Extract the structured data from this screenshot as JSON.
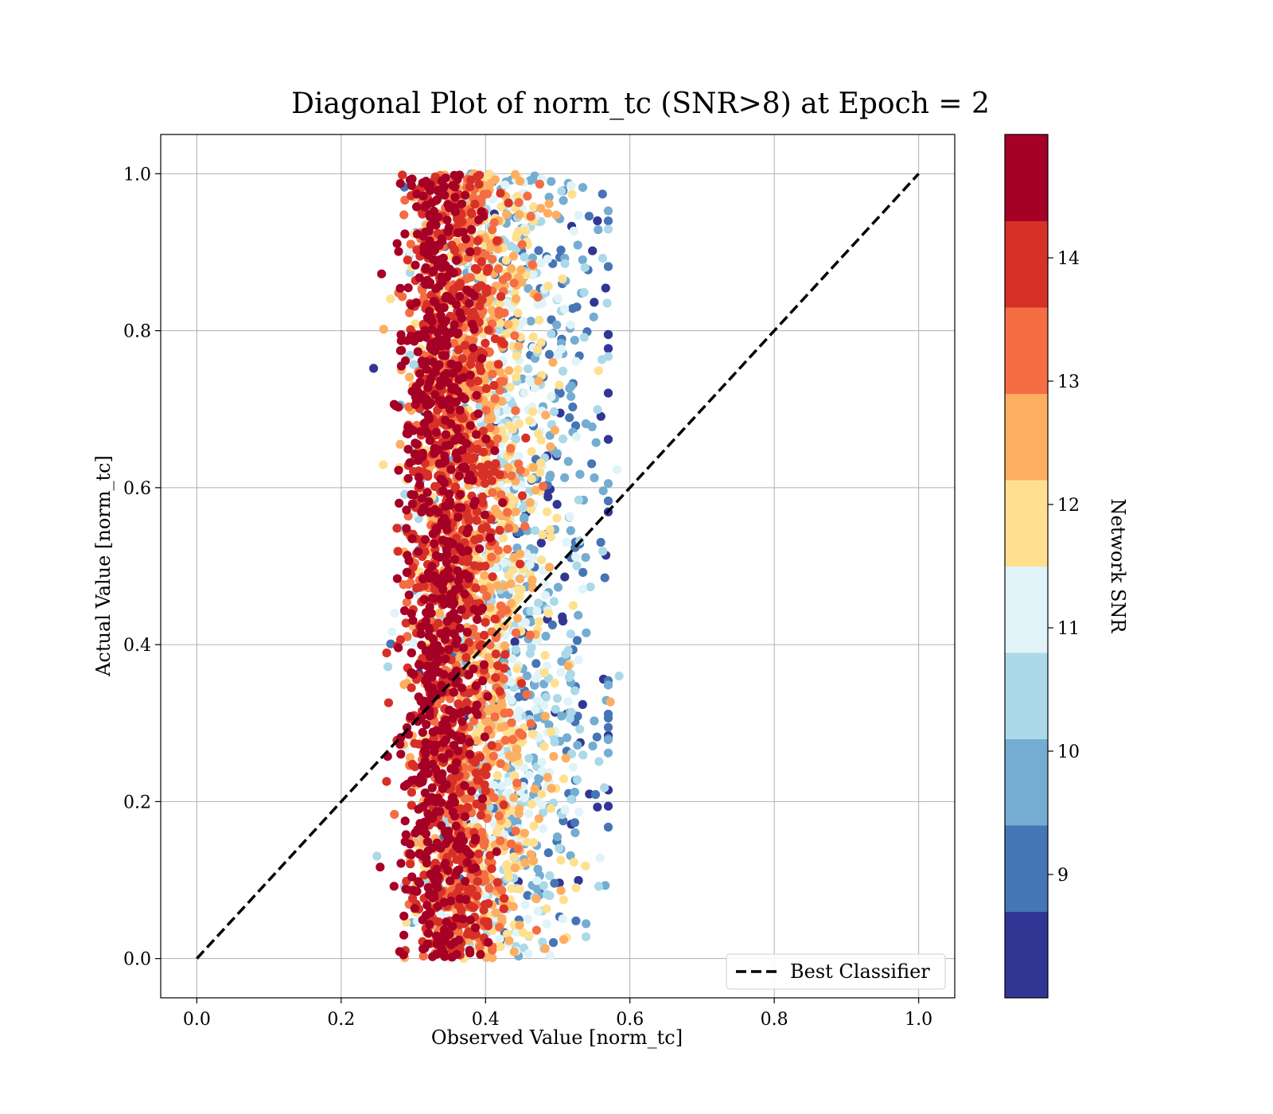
{
  "chart_data": {
    "type": "scatter",
    "title": "Diagonal Plot of norm_tc (SNR>8) at Epoch = 2",
    "xlabel": "Observed Value [norm_tc]",
    "ylabel": "Actual Value [norm_tc]",
    "xlim": [
      -0.05,
      1.05
    ],
    "ylim": [
      -0.05,
      1.05
    ],
    "xticks": [
      "0.0",
      "0.2",
      "0.4",
      "0.6",
      "0.8",
      "1.0"
    ],
    "yticks": [
      "0.0",
      "0.2",
      "0.4",
      "0.6",
      "0.8",
      "1.0"
    ],
    "grid": true,
    "reference_line": {
      "name": "Best Classifier",
      "style": "dashed",
      "color": "#000000",
      "x": [
        0.0,
        1.0
      ],
      "y": [
        0.0,
        1.0
      ]
    },
    "legend": {
      "placement": "lower-right",
      "entries": [
        "Best Classifier"
      ]
    },
    "scatter": {
      "observed_range": [
        0.24,
        0.59
      ],
      "actual_range": [
        0.0,
        1.0
      ],
      "dense_band": [
        0.27,
        0.38
      ],
      "description_values": "Dense cluster of predictions near observed 0.27-0.38 for all actual values 0-1; colored by network SNR."
    },
    "colorbar": {
      "label": "Network SNR",
      "range": [
        8.0,
        15.0
      ],
      "ticks": [
        "9",
        "10",
        "11",
        "12",
        "13",
        "14"
      ],
      "tick_values": [
        9,
        10,
        11,
        12,
        13,
        14
      ],
      "bins": 10,
      "colors": [
        "#313695",
        "#4575b4",
        "#74add1",
        "#abd9e9",
        "#e0f3f8",
        "#fee090",
        "#fdae61",
        "#f46d43",
        "#d73027",
        "#a50026"
      ]
    }
  }
}
